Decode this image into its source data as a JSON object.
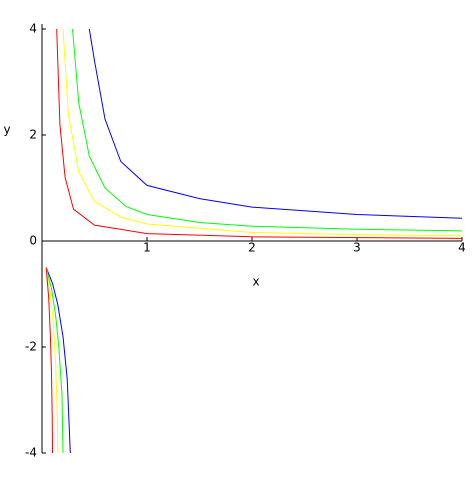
{
  "chart_data": {
    "type": "line",
    "x_label": "x",
    "y_label": "y",
    "xlim": [
      0,
      4
    ],
    "ylim": [
      -4,
      4
    ],
    "xticks": [
      1,
      2,
      3,
      4
    ],
    "yticks": [
      4,
      2,
      0,
      -2,
      -4
    ],
    "series": [
      {
        "color": "#0000ff",
        "x": [
          0.45,
          0.5,
          0.6,
          0.75,
          1,
          1.5,
          2,
          3,
          4
        ],
        "values": [
          4,
          3.4,
          2.3,
          1.5,
          1.05,
          0.8,
          0.64,
          0.5,
          0.43
        ]
      },
      {
        "color": "#00ff00",
        "x": [
          0.29,
          0.35,
          0.45,
          0.6,
          0.8,
          1,
          1.5,
          2,
          3,
          4
        ],
        "values": [
          4,
          2.6,
          1.6,
          1.0,
          0.65,
          0.5,
          0.35,
          0.28,
          0.22,
          0.19
        ]
      },
      {
        "color": "#ffff00",
        "x": [
          0.2,
          0.25,
          0.35,
          0.5,
          0.75,
          1,
          2,
          3,
          4
        ],
        "values": [
          4,
          2.4,
          1.3,
          0.75,
          0.45,
          0.32,
          0.16,
          0.12,
          0.1
        ]
      },
      {
        "color": "#ff0000",
        "x": [
          0.14,
          0.17,
          0.22,
          0.3,
          0.5,
          1,
          2,
          4
        ],
        "values": [
          4,
          2.2,
          1.2,
          0.6,
          0.3,
          0.14,
          0.08,
          0.05
        ]
      },
      {
        "color": "#0000ff",
        "x": [
          0.04,
          0.1,
          0.15,
          0.2,
          0.24,
          0.27
        ],
        "values": [
          -0.5,
          -0.8,
          -1.2,
          -1.8,
          -2.6,
          -4
        ]
      },
      {
        "color": "#00ff00",
        "x": [
          0.04,
          0.09,
          0.13,
          0.16,
          0.19,
          0.2
        ],
        "values": [
          -0.5,
          -0.9,
          -1.4,
          -2.0,
          -2.9,
          -4
        ]
      },
      {
        "color": "#ffff00",
        "x": [
          0.04,
          0.08,
          0.11,
          0.13,
          0.145,
          0.15
        ],
        "values": [
          -0.5,
          -1.0,
          -1.6,
          -2.3,
          -3.2,
          -4
        ]
      },
      {
        "color": "#ff0000",
        "x": [
          0.04,
          0.065,
          0.08,
          0.09,
          0.097,
          0.1
        ],
        "values": [
          -0.5,
          -1.1,
          -1.8,
          -2.5,
          -3.3,
          -4
        ]
      }
    ]
  }
}
